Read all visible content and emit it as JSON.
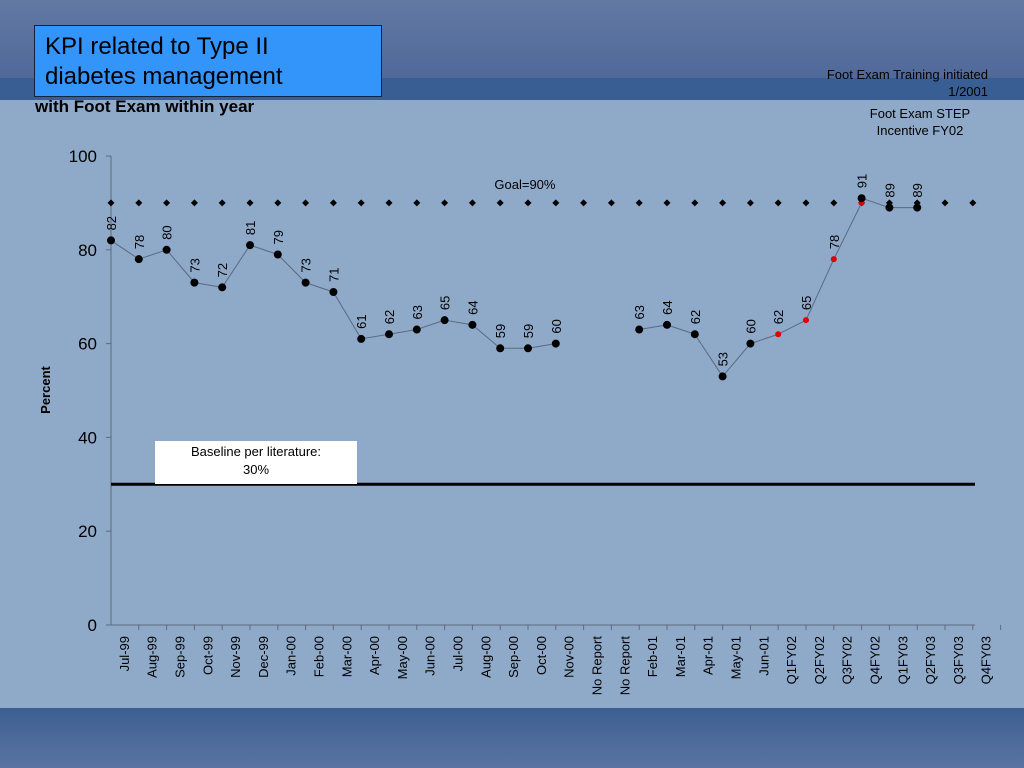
{
  "slide": {
    "title_line1": "KPI related to Type II",
    "title_line2": "diabetes management",
    "subtitle": "with Foot Exam within year",
    "note_training_line1": "Foot Exam Training initiated",
    "note_training_line2": "1/2001",
    "note_step_line1": "Foot Exam STEP",
    "note_step_line2": "Incentive FY02"
  },
  "colors": {
    "title_box": "#3394f9",
    "band_dark": "#385e93",
    "plot_bg": "#8fa9c9",
    "marker": "#000000",
    "marker_highlight": "#e00000",
    "line": "#5a6a80"
  },
  "chart_data": {
    "type": "line",
    "ylabel": "Percent",
    "ylim": [
      0,
      100
    ],
    "yticks": [
      0,
      20,
      40,
      60,
      80,
      100
    ],
    "categories": [
      "Jul-99",
      "Aug-99",
      "Sep-99",
      "Oct-99",
      "Nov-99",
      "Dec-99",
      "Jan-00",
      "Feb-00",
      "Mar-00",
      "Apr-00",
      "May-00",
      "Jun-00",
      "Jul-00",
      "Aug-00",
      "Sep-00",
      "Oct-00",
      "Nov-00",
      "No Report",
      "No Report",
      "Feb-01",
      "Mar-01",
      "Apr-01",
      "May-01",
      "Jun-01",
      "Q1FY02",
      "Q2FY02",
      "Q3FY02",
      "Q4FY02",
      "Q1FY03",
      "Q2FY03",
      "Q3FY03",
      "Q4FY03"
    ],
    "series": [
      {
        "values": [
          82,
          78,
          80,
          73,
          72,
          81,
          79,
          73,
          71,
          61,
          62,
          63,
          65,
          64,
          59,
          59,
          60,
          null,
          null,
          63,
          64,
          62,
          53,
          60,
          null,
          null,
          null,
          91,
          89,
          89,
          null,
          null
        ],
        "labels": [
          82,
          78,
          80,
          73,
          72,
          81,
          79,
          73,
          71,
          61,
          62,
          63,
          65,
          64,
          59,
          59,
          60,
          null,
          null,
          63,
          64,
          62,
          53,
          60,
          62,
          65,
          78,
          91,
          89,
          89,
          null,
          null
        ],
        "marker": "circle",
        "color": "#000000"
      },
      {
        "values": [
          null,
          null,
          null,
          null,
          null,
          null,
          null,
          null,
          null,
          null,
          null,
          null,
          null,
          null,
          null,
          null,
          null,
          null,
          null,
          null,
          null,
          null,
          null,
          60,
          62,
          65,
          78,
          90,
          null,
          null,
          null,
          null
        ],
        "marker": "circle-small",
        "color": "#e00000"
      },
      {
        "values": [
          90,
          90,
          90,
          90,
          90,
          90,
          90,
          90,
          90,
          90,
          90,
          90,
          90,
          90,
          90,
          90,
          90,
          90,
          90,
          90,
          90,
          90,
          90,
          90,
          90,
          90,
          90,
          90,
          90,
          90,
          90,
          90
        ],
        "marker": "diamond",
        "color": "#000000"
      }
    ],
    "reference_lines": [
      {
        "value": 30,
        "label_line1": "Baseline per literature:",
        "label_line2": "30%"
      }
    ],
    "annotations": [
      {
        "text": "Goal=90%",
        "x": "Aug-00",
        "y": 90
      }
    ],
    "grid": false,
    "legend": "none"
  }
}
